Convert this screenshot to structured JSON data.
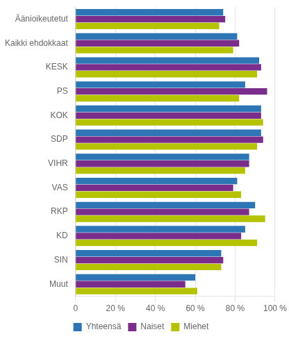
{
  "chart_data": {
    "type": "bar",
    "orientation": "horizontal",
    "categories": [
      "Äänioikeutetut",
      "Kaikki ehdokkaat",
      "KESK",
      "PS",
      "KOK",
      "SDP",
      "VIHR",
      "VAS",
      "RKP",
      "KD",
      "SIN",
      "Muut"
    ],
    "series": [
      {
        "name": "Yhteensä",
        "color": "#2E75B6",
        "values": [
          74,
          81,
          92,
          85,
          93,
          93,
          87,
          81,
          90,
          85,
          73,
          60
        ]
      },
      {
        "name": "Naiset",
        "color": "#7B2D8B",
        "values": [
          75,
          82,
          93,
          96,
          93,
          94,
          87,
          79,
          87,
          83,
          74,
          55
        ]
      },
      {
        "name": "Miehet",
        "color": "#B5C200",
        "values": [
          72,
          79,
          91,
          82,
          94,
          91,
          85,
          83,
          95,
          91,
          73,
          61
        ]
      }
    ],
    "xlim": [
      0,
      100
    ],
    "xticks": [
      0,
      {
        "value": 20,
        "label": "20 %"
      },
      {
        "value": 40,
        "label": "40 %"
      },
      {
        "value": 60,
        "label": "60 %"
      },
      {
        "value": 80,
        "label": "80 %"
      },
      {
        "value": 100,
        "label": "100 %"
      }
    ],
    "grid": true,
    "legend": "bottom"
  }
}
